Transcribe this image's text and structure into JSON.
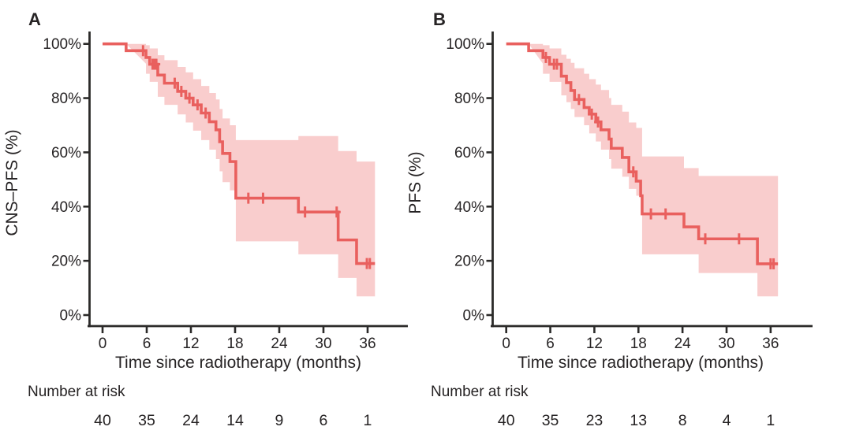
{
  "figure": {
    "type": "kaplan-meier-survival-figure",
    "background": "#ffffff"
  },
  "colors": {
    "curve": "#e9605e",
    "band": "#f9cdcd",
    "text": "#262324",
    "axis": "#2b2a29"
  },
  "chart_data": [
    {
      "type": "line",
      "subtype": "kaplan-meier-step",
      "panel_label": "A",
      "ylabel": "CNS–PFS (%)",
      "xlabel": "Time since radiotherapy (months)",
      "xlim": [
        0,
        39
      ],
      "ylim": [
        0,
        100
      ],
      "grid": false,
      "legend": "none",
      "x_ticks": [
        0,
        6,
        12,
        18,
        24,
        30,
        36
      ],
      "y_ticks": [
        [
          0,
          "0%"
        ],
        [
          20,
          "20%"
        ],
        [
          40,
          "40%"
        ],
        [
          60,
          "60%"
        ],
        [
          80,
          "80%"
        ],
        [
          100,
          "100%"
        ]
      ],
      "steps": [
        [
          0,
          100
        ],
        [
          3.2,
          97.5
        ],
        [
          5.9,
          95
        ],
        [
          6.4,
          92.5
        ],
        [
          7.5,
          88.5
        ],
        [
          8.4,
          85.5
        ],
        [
          10.2,
          82.5
        ],
        [
          11.3,
          80
        ],
        [
          12.3,
          77.5
        ],
        [
          13.4,
          74.5
        ],
        [
          14.5,
          71.3
        ],
        [
          15.4,
          68.3
        ],
        [
          15.9,
          63.9
        ],
        [
          16.3,
          59.6
        ],
        [
          17.3,
          56.6
        ],
        [
          18.1,
          43.1
        ],
        [
          26.6,
          38
        ],
        [
          32.0,
          27.7
        ],
        [
          34.5,
          19
        ],
        [
          37.0,
          19
        ]
      ],
      "censors": [
        [
          5.5,
          97.5
        ],
        [
          6.8,
          92.5
        ],
        [
          7.05,
          92.5
        ],
        [
          7.3,
          92.5
        ],
        [
          9.8,
          85.5
        ],
        [
          10.7,
          82.5
        ],
        [
          11.8,
          80
        ],
        [
          12.9,
          77.5
        ],
        [
          14.0,
          74.5
        ],
        [
          19.8,
          43.1
        ],
        [
          21.8,
          43.1
        ],
        [
          27.5,
          38
        ],
        [
          31.8,
          38
        ],
        [
          35.9,
          19
        ],
        [
          36.3,
          19
        ]
      ],
      "band": [
        [
          3.2,
          100,
          92.7
        ],
        [
          5.9,
          99.5,
          89
        ],
        [
          6.4,
          98.3,
          86
        ],
        [
          7.5,
          95.8,
          80.5
        ],
        [
          8.4,
          94,
          77.5
        ],
        [
          10.2,
          91.5,
          74
        ],
        [
          11.3,
          89.5,
          71
        ],
        [
          12.3,
          87,
          68
        ],
        [
          13.4,
          84.5,
          64.5
        ],
        [
          14.5,
          81.9,
          61
        ],
        [
          15.4,
          79.5,
          57.5
        ],
        [
          15.9,
          76,
          53
        ],
        [
          16.3,
          72.5,
          49
        ],
        [
          17.3,
          70,
          46
        ],
        [
          18.1,
          64.5,
          27.2
        ],
        [
          26.6,
          66,
          22.4
        ],
        [
          32.0,
          60.5,
          13.7
        ],
        [
          34.5,
          56.6,
          6.9
        ],
        [
          37.0,
          56.6,
          6.9
        ]
      ],
      "number_at_risk": {
        "label": "Number at risk",
        "times": [
          0,
          6,
          12,
          18,
          24,
          30,
          36
        ],
        "values": [
          40,
          35,
          24,
          14,
          9,
          6,
          1
        ]
      }
    },
    {
      "type": "line",
      "subtype": "kaplan-meier-step",
      "panel_label": "B",
      "ylabel": "PFS (%)",
      "xlabel": "Time since radiotherapy (months)",
      "xlim": [
        0,
        39
      ],
      "ylim": [
        0,
        100
      ],
      "grid": false,
      "legend": "none",
      "x_ticks": [
        0,
        6,
        12,
        18,
        24,
        30,
        36
      ],
      "y_ticks": [
        [
          0,
          "0%"
        ],
        [
          20,
          "20%"
        ],
        [
          40,
          "40%"
        ],
        [
          60,
          "60%"
        ],
        [
          80,
          "80%"
        ],
        [
          100,
          "100%"
        ]
      ],
      "steps": [
        [
          0,
          100
        ],
        [
          3.05,
          97.5
        ],
        [
          5.0,
          95
        ],
        [
          5.9,
          92.5
        ],
        [
          7.5,
          88.1
        ],
        [
          8.2,
          85.7
        ],
        [
          8.8,
          82.8
        ],
        [
          9.3,
          79.5
        ],
        [
          10.6,
          76.5
        ],
        [
          11.3,
          74.1
        ],
        [
          12.2,
          71.2
        ],
        [
          12.9,
          68.3
        ],
        [
          14.0,
          64.9
        ],
        [
          14.3,
          61.5
        ],
        [
          15.8,
          58.1
        ],
        [
          16.7,
          52.8
        ],
        [
          17.7,
          49.4
        ],
        [
          18.3,
          44.0
        ],
        [
          18.5,
          37.3
        ],
        [
          24.2,
          32.5
        ],
        [
          26.2,
          28.1
        ],
        [
          34.2,
          18.9
        ],
        [
          37.0,
          18.9
        ]
      ],
      "censors": [
        [
          5.4,
          95
        ],
        [
          6.5,
          92.5
        ],
        [
          6.9,
          92.5
        ],
        [
          9.9,
          79.5
        ],
        [
          11.65,
          74.1
        ],
        [
          12.5,
          71.2
        ],
        [
          17.3,
          52.8
        ],
        [
          19.7,
          37.3
        ],
        [
          21.7,
          37.3
        ],
        [
          27.1,
          28.1
        ],
        [
          31.7,
          28.1
        ],
        [
          36.0,
          18.9
        ],
        [
          36.4,
          18.9
        ]
      ],
      "band": [
        [
          3.05,
          100,
          92.7
        ],
        [
          5.0,
          99.5,
          89
        ],
        [
          5.9,
          98.3,
          86
        ],
        [
          7.5,
          96,
          81
        ],
        [
          8.2,
          94.5,
          78.5
        ],
        [
          8.8,
          93,
          76
        ],
        [
          9.3,
          91,
          73
        ],
        [
          10.6,
          89,
          70
        ],
        [
          11.3,
          87,
          67
        ],
        [
          12.2,
          85,
          64
        ],
        [
          12.9,
          83,
          61
        ],
        [
          14.0,
          80,
          57.5
        ],
        [
          14.3,
          77.5,
          54
        ],
        [
          15.8,
          75,
          51
        ],
        [
          16.7,
          71,
          46.5
        ],
        [
          17.7,
          69,
          44
        ],
        [
          18.5,
          58.5,
          22.4
        ],
        [
          24.2,
          54.2,
          22.4
        ],
        [
          26.2,
          51.3,
          15.5
        ],
        [
          34.2,
          51.3,
          6.9
        ],
        [
          37.0,
          51.3,
          6.9
        ]
      ],
      "number_at_risk": {
        "label": "Number at risk",
        "times": [
          0,
          6,
          12,
          18,
          24,
          30,
          36
        ],
        "values": [
          40,
          35,
          23,
          13,
          8,
          4,
          1
        ]
      }
    }
  ]
}
